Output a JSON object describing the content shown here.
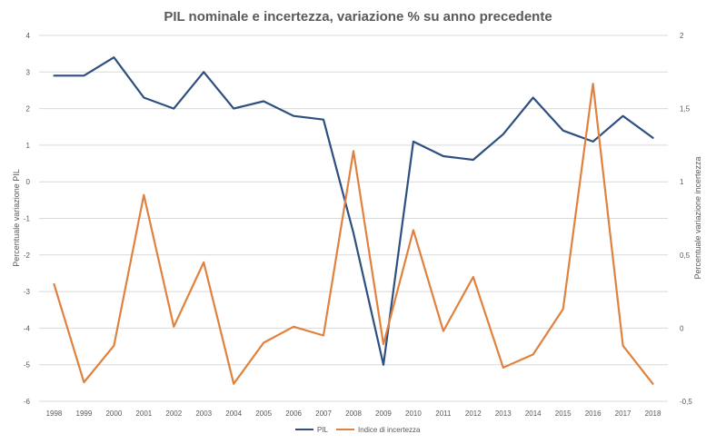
{
  "chart_data": {
    "type": "line",
    "title": "PIL nominale e incertezza, variazione % su anno precedente",
    "categories": [
      "1998",
      "1999",
      "2000",
      "2001",
      "2002",
      "2003",
      "2004",
      "2005",
      "2006",
      "2007",
      "2008",
      "2009",
      "2010",
      "2011",
      "2012",
      "2013",
      "2014",
      "2015",
      "2016",
      "2017",
      "2018"
    ],
    "y_left": {
      "label": "Percentuale variazione PIL",
      "range": [
        -6,
        4
      ],
      "ticks": [
        "4",
        "3",
        "2",
        "1",
        "0",
        "-1",
        "-2",
        "-3",
        "-4",
        "-5",
        "-6"
      ]
    },
    "y_right": {
      "label": "Percentuale variazione incertezza",
      "range": [
        -0.5,
        2
      ],
      "ticks": [
        "2",
        "1,5",
        "1",
        "0,5",
        "0",
        "-0,5"
      ]
    },
    "grid": true,
    "legend_position": "bottom",
    "series": [
      {
        "name": "PIL",
        "axis": "left",
        "color": "#2e4f7f",
        "values": [
          2.9,
          2.9,
          3.4,
          2.3,
          2.0,
          3.0,
          2.0,
          2.2,
          1.8,
          1.7,
          -1.4,
          -5.0,
          1.1,
          0.7,
          0.6,
          1.3,
          2.3,
          1.4,
          1.1,
          1.8,
          1.2
        ]
      },
      {
        "name": "Indice di incertezza",
        "axis": "right",
        "color": "#e0823e",
        "values": [
          0.3,
          -0.37,
          -0.12,
          0.91,
          0.01,
          0.45,
          -0.38,
          -0.1,
          0.01,
          -0.05,
          1.21,
          -0.11,
          0.67,
          -0.02,
          0.35,
          -0.27,
          -0.18,
          0.13,
          1.67,
          -0.12,
          -0.38
        ]
      }
    ]
  }
}
